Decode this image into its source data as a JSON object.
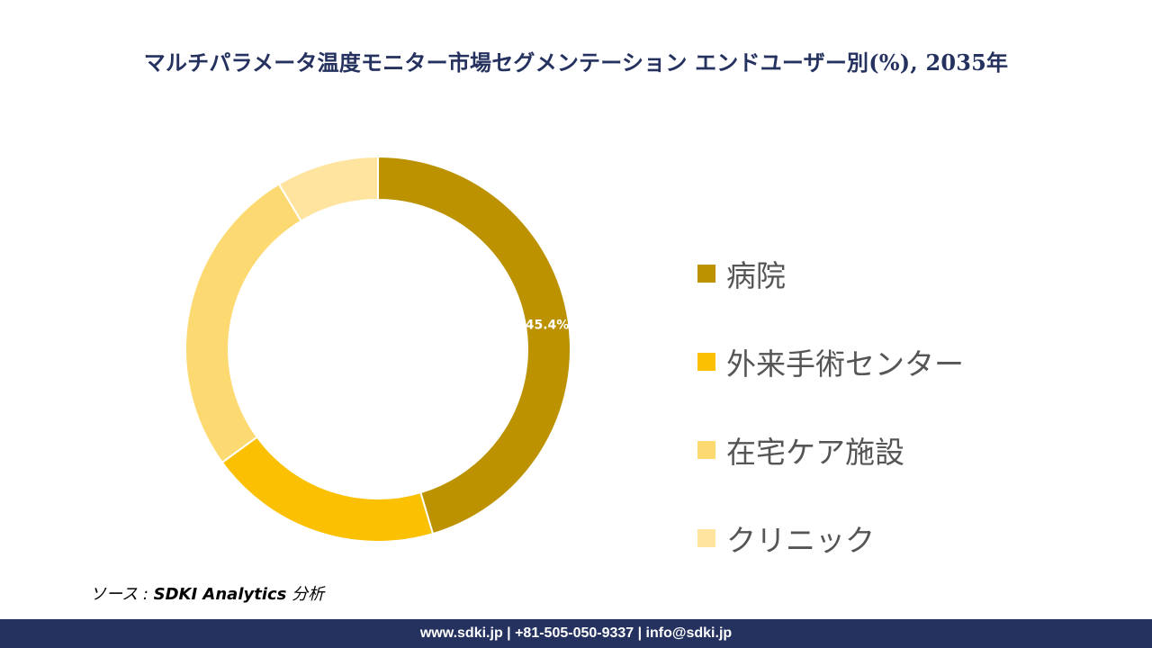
{
  "title": "マルチパラメータ温度モニター市場セグメンテーション エンドユーザー別(%), 2035年",
  "chart_data": {
    "type": "pie",
    "style": "donut",
    "categories": [
      "病院",
      "外来手術センター",
      "在宅ケア施設",
      "クリニック"
    ],
    "values": [
      45.4,
      19.6,
      26.4,
      8.6
    ],
    "colors": [
      "#BC9200",
      "#FBC002",
      "#FDD971",
      "#FEE49F"
    ],
    "data_labels": [
      "45.4%",
      "",
      "",
      ""
    ],
    "legend_position": "right"
  },
  "source": {
    "prefix": "ソース : ",
    "brand": "SDKI Analytics",
    "suffix": " 分析"
  },
  "footer": "www.sdki.jp | +81-505-050-9337 | info@sdki.jp"
}
